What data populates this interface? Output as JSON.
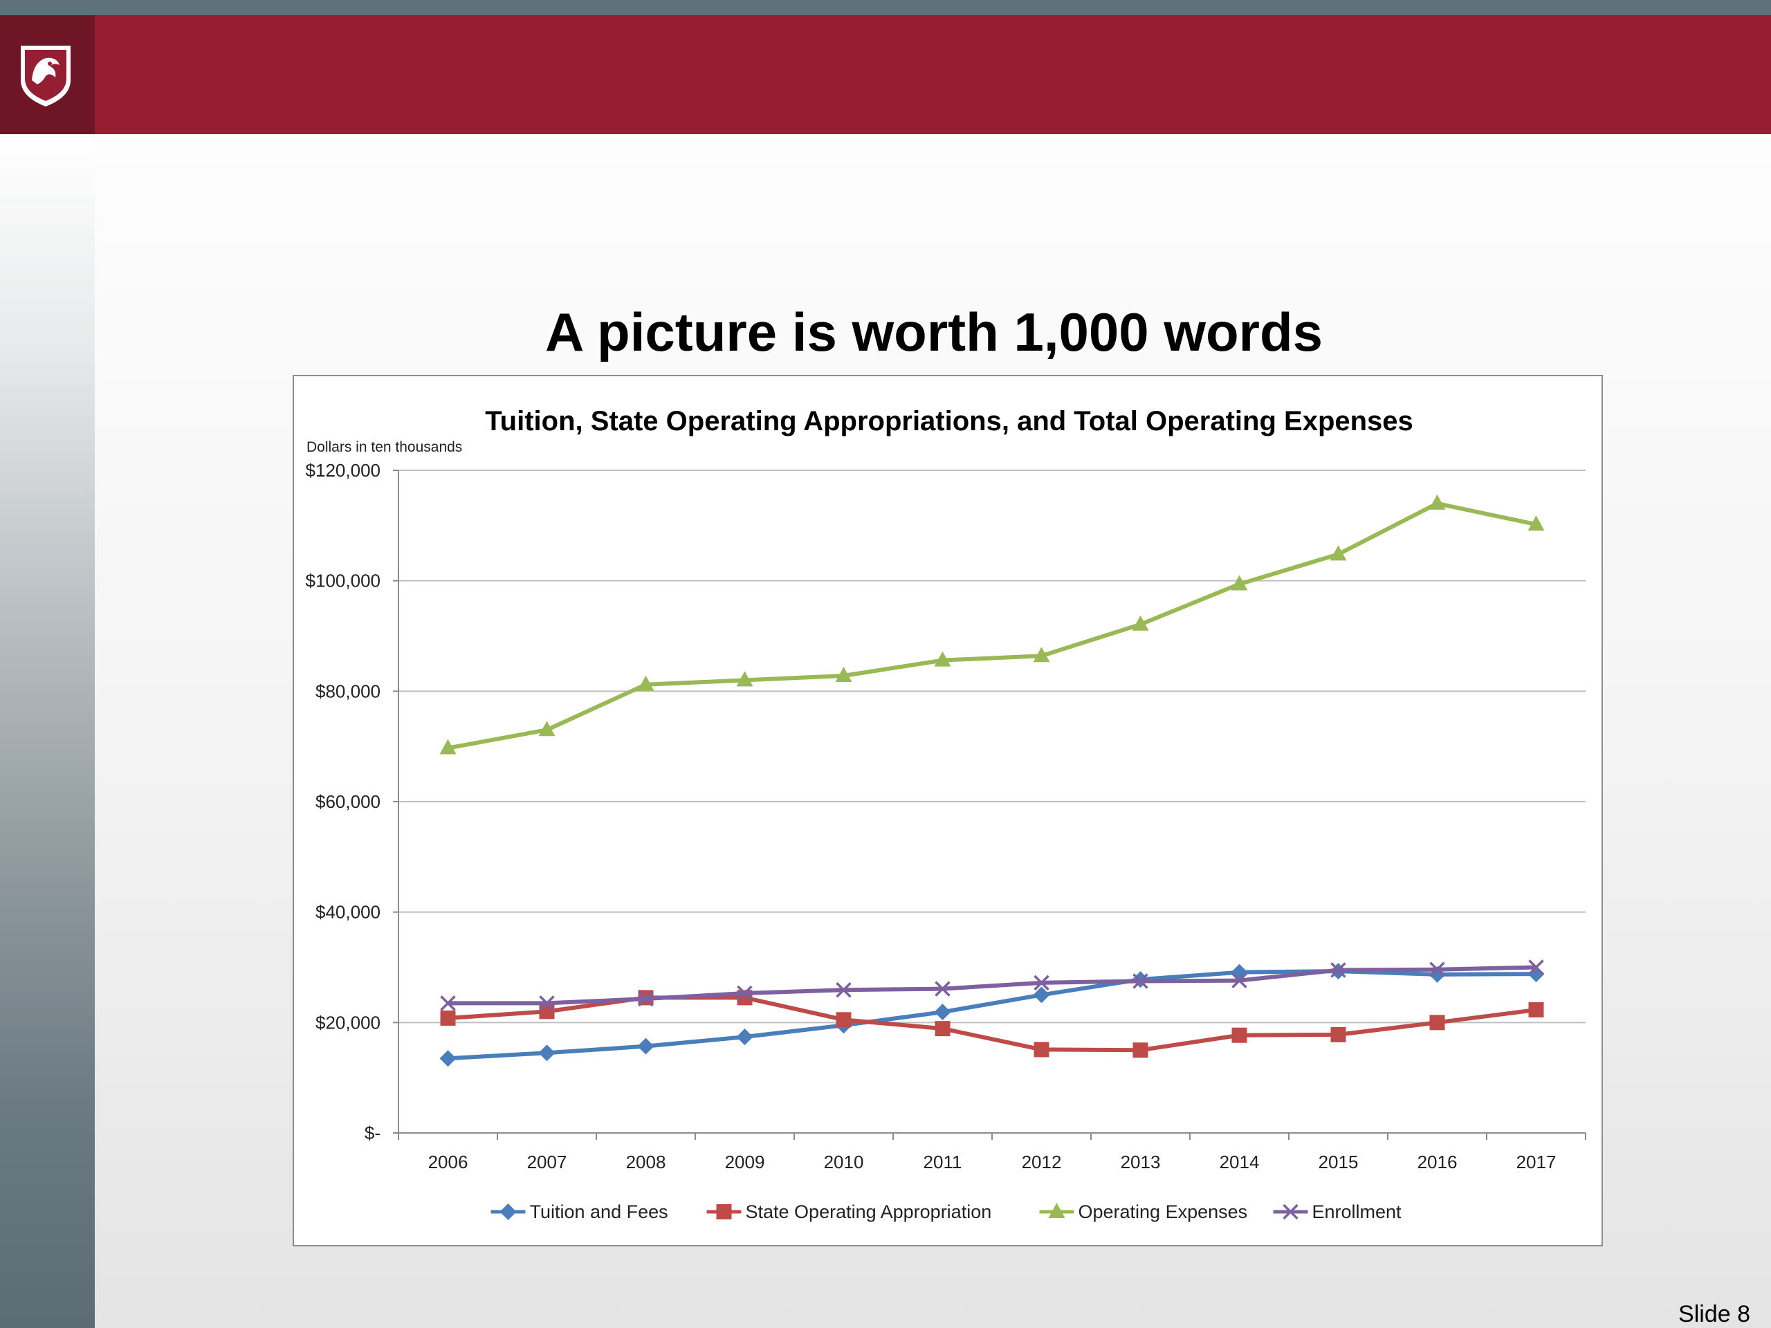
{
  "slide": {
    "title": "A picture is worth 1,000 words",
    "number_label": "Slide 8",
    "colors": {
      "banner": "#951e32",
      "strip": "#5f717a",
      "logo_bg": "#6e1526"
    },
    "logo_icon": "wsu-cougar-shield-icon"
  },
  "chart_data": {
    "type": "line",
    "title": "Tuition, State Operating Appropriations, and Total Operating Expenses",
    "ylabel": "Dollars in ten thousands",
    "xlabel": "",
    "x": [
      "2006",
      "2007",
      "2008",
      "2009",
      "2010",
      "2011",
      "2012",
      "2013",
      "2014",
      "2015",
      "2016",
      "2017"
    ],
    "ylim": [
      0,
      120000
    ],
    "yticks": [
      0,
      20000,
      40000,
      60000,
      80000,
      100000,
      120000
    ],
    "ytick_labels": [
      "$-",
      "$20,000",
      "$40,000",
      "$60,000",
      "$80,000",
      "$100,000",
      "$120,000"
    ],
    "grid": true,
    "legend_position": "bottom",
    "series": [
      {
        "name": "Tuition and Fees",
        "color": "#4a7ebb",
        "marker": "diamond",
        "values": [
          13500,
          14500,
          15700,
          17400,
          19500,
          21900,
          25000,
          27800,
          29100,
          29300,
          28700,
          28800
        ]
      },
      {
        "name": "State Operating Appropriation",
        "color": "#be4b48",
        "marker": "square",
        "values": [
          20800,
          22000,
          24500,
          24500,
          20500,
          18900,
          15100,
          15000,
          17700,
          17800,
          20000,
          22300
        ]
      },
      {
        "name": "Operating Expenses",
        "color": "#98b954",
        "marker": "triangle",
        "values": [
          69700,
          73000,
          81200,
          82000,
          82800,
          85600,
          86400,
          92100,
          99400,
          104800,
          114000,
          110200
        ]
      },
      {
        "name": "Enrollment",
        "color": "#7d60a0",
        "marker": "x",
        "values": [
          23500,
          23500,
          24300,
          25300,
          25900,
          26100,
          27200,
          27500,
          27600,
          29500,
          29600,
          30000
        ]
      }
    ]
  }
}
